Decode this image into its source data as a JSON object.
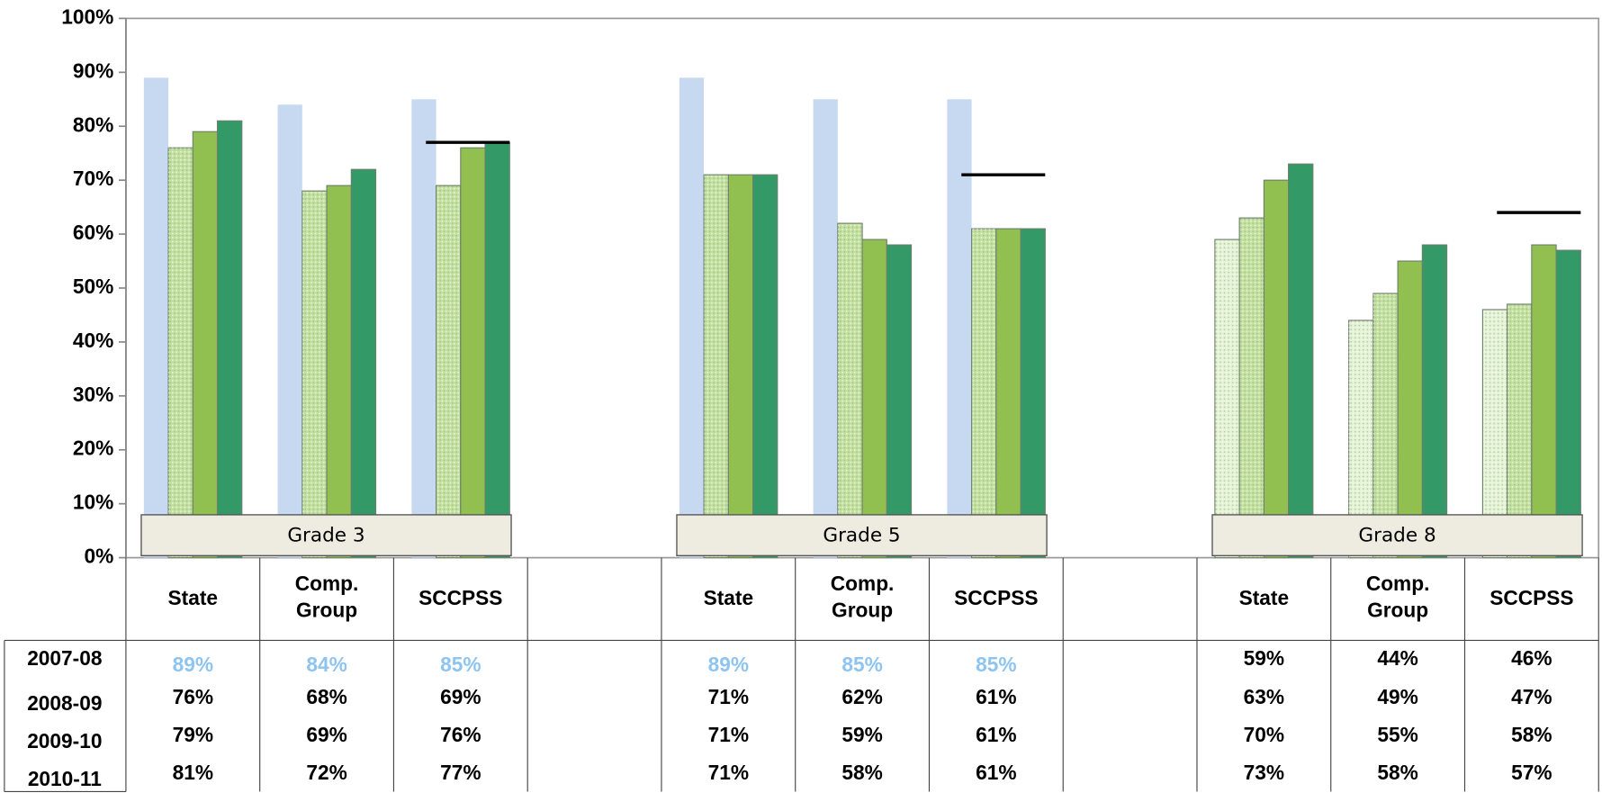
{
  "chart_data": {
    "type": "bar",
    "categories": [
      "State",
      "Comp. Group",
      "SCCPSS",
      null,
      "State",
      "Comp. Group",
      "SCCPSS",
      null,
      "State",
      "Comp. Group",
      "SCCPSS"
    ],
    "group_labels": [
      "Grade 3",
      "Grade 5",
      "Grade 8"
    ],
    "series": [
      {
        "name": "2007-08",
        "color": "#c6d9f1",
        "colors": [
          "#c6d9f1",
          "#c6d9f1",
          "#c6d9f1",
          null,
          "#c6d9f1",
          "#c6d9f1",
          "#c6d9f1",
          null,
          "#e4f2d6",
          "#e4f2d6",
          "#e4f2d6"
        ],
        "label_colors": [
          "#8ec4f0",
          "#8ec4f0",
          "#8ec4f0",
          null,
          "#8ec4f0",
          "#8ec4f0",
          "#8ec4f0",
          null,
          "#000000",
          "#000000",
          "#000000"
        ],
        "values": [
          89,
          84,
          85,
          null,
          89,
          85,
          85,
          null,
          59,
          44,
          46
        ],
        "value_labels": [
          "89%",
          "84%",
          "85%",
          null,
          "89%",
          "85%",
          "85%",
          null,
          "59%",
          "44%",
          "46%"
        ]
      },
      {
        "name": "2008-09",
        "color": "#c3e0a0",
        "texture": "dotted",
        "values": [
          76,
          68,
          69,
          null,
          71,
          62,
          61,
          null,
          63,
          49,
          47
        ],
        "value_labels": [
          "76%",
          "68%",
          "69%",
          null,
          "71%",
          "62%",
          "61%",
          null,
          "63%",
          "49%",
          "47%"
        ]
      },
      {
        "name": "2009-10",
        "color": "#92c050",
        "values": [
          79,
          69,
          76,
          null,
          71,
          59,
          61,
          null,
          70,
          55,
          58
        ],
        "value_labels": [
          "79%",
          "69%",
          "76%",
          null,
          "71%",
          "59%",
          "61%",
          null,
          "70%",
          "55%",
          "58%"
        ]
      },
      {
        "name": "2010-11",
        "color": "#339966",
        "values": [
          81,
          72,
          77,
          null,
          71,
          58,
          61,
          null,
          73,
          58,
          57
        ],
        "value_labels": [
          "81%",
          "72%",
          "77%",
          null,
          "71%",
          "58%",
          "61%",
          null,
          "73%",
          "58%",
          "57%"
        ]
      }
    ],
    "targets": [
      null,
      null,
      77,
      null,
      null,
      null,
      71,
      null,
      null,
      null,
      64
    ],
    "target_color": "#000000",
    "ylim": [
      0,
      100
    ],
    "yticks": [
      {
        "value": 0,
        "label": "0%"
      },
      {
        "value": 10,
        "label": "10%"
      },
      {
        "value": 20,
        "label": "20%"
      },
      {
        "value": 30,
        "label": "30%"
      },
      {
        "value": 40,
        "label": "40%"
      },
      {
        "value": 50,
        "label": "50%"
      },
      {
        "value": 60,
        "label": "60%"
      },
      {
        "value": 70,
        "label": "70%"
      },
      {
        "value": 80,
        "label": "80%"
      },
      {
        "value": 90,
        "label": "90%"
      },
      {
        "value": 100,
        "label": "100%"
      }
    ]
  }
}
